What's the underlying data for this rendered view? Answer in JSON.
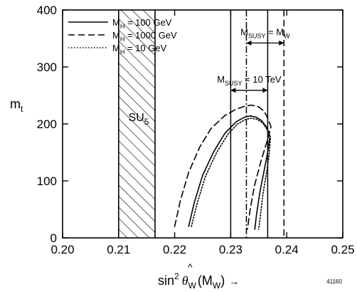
{
  "chart_data": {
    "type": "line",
    "title": "",
    "xlabel": "sin² θ̂W(MW) →",
    "xlabel_parts": {
      "main": "sin",
      "sup": "2",
      "theta": "θ",
      "hat": "^",
      "sub": "W",
      "arg": "(M",
      "arg_sub": "W",
      "close": ")",
      "arrow": "→"
    },
    "ylabel": "mt",
    "ylabel_parts": {
      "main": "m",
      "sub": "t"
    },
    "xlim": [
      0.2,
      0.25
    ],
    "ylim": [
      0,
      400
    ],
    "xticks": [
      0.2,
      0.21,
      0.22,
      0.23,
      0.24,
      0.25
    ],
    "xtick_labels": [
      "0.20",
      "0.21",
      "0.22",
      "0.23",
      "0.24",
      "0.25"
    ],
    "yticks": [
      0,
      100,
      200,
      300,
      400
    ],
    "ytick_labels": [
      "0",
      "100",
      "200",
      "300",
      "400"
    ],
    "grid": false,
    "legend_position": "top-left",
    "series": [
      {
        "name": "MH = 100 GeV",
        "legend_parts": {
          "m": "M",
          "sub": "H",
          "rest": " = 100 GeV"
        },
        "style": "solid",
        "lower_x": [
          0.2225,
          0.2235,
          0.225,
          0.227,
          0.229,
          0.231,
          0.2325,
          0.2335,
          0.2345,
          0.2355,
          0.2363,
          0.2368,
          0.237
        ],
        "lower_y": [
          20,
          62,
          110,
          152,
          184,
          204,
          212,
          214,
          212,
          206,
          196,
          185,
          178
        ],
        "upper_x": [
          0.2343,
          0.2346,
          0.2352,
          0.236,
          0.2366,
          0.237
        ],
        "upper_y": [
          15,
          40,
          80,
          120,
          150,
          178
        ]
      },
      {
        "name": "MH = 1000 GeV",
        "legend_parts": {
          "m": "M",
          "sub": "H",
          "rest": " = 1000 GeV"
        },
        "style": "dashed",
        "lower_x": [
          0.22,
          0.221,
          0.2225,
          0.2245,
          0.2265,
          0.229,
          0.231,
          0.2325,
          0.2337,
          0.235,
          0.236,
          0.2367,
          0.2372
        ],
        "lower_y": [
          20,
          65,
          115,
          160,
          192,
          215,
          226,
          231,
          233,
          230,
          222,
          208,
          195
        ],
        "upper_x": [
          0.233,
          0.2334,
          0.2342,
          0.2354,
          0.2365,
          0.2372
        ],
        "upper_y": [
          15,
          45,
          90,
          135,
          170,
          195
        ]
      },
      {
        "name": "MH = 10 GeV",
        "legend_parts": {
          "m": "M",
          "sub": "H",
          "rest": " = 10 GeV"
        },
        "style": "dotted",
        "lower_x": [
          0.223,
          0.224,
          0.2255,
          0.2275,
          0.2295,
          0.2312,
          0.2327,
          0.2337,
          0.2347,
          0.2357,
          0.2364,
          0.2369,
          0.2371
        ],
        "lower_y": [
          20,
          60,
          108,
          150,
          182,
          200,
          208,
          210,
          208,
          202,
          192,
          182,
          176
        ],
        "upper_x": [
          0.235,
          0.2353,
          0.2358,
          0.2365,
          0.2369,
          0.2371
        ],
        "upper_y": [
          15,
          40,
          80,
          120,
          150,
          176
        ]
      }
    ],
    "excluded_band": {
      "label": "SU5",
      "label_parts": {
        "main": "SU",
        "sub": "5"
      },
      "x_range": [
        0.21,
        0.2165
      ],
      "y_range": [
        0,
        400
      ],
      "style": "hatched"
    },
    "vertical_lines": [
      {
        "x": 0.23,
        "style": "solid"
      },
      {
        "x": 0.2328,
        "style": "dash-dot"
      },
      {
        "x": 0.2366,
        "style": "solid"
      },
      {
        "x": 0.2395,
        "style": "dashed"
      }
    ],
    "annotations": [
      {
        "id": "msusy-mw",
        "text": "MSUSY = MW",
        "parts": {
          "m": "M",
          "sub": "SUSY",
          "eq": " = ",
          "m2": "M",
          "sub2": "W"
        },
        "arrow_x": [
          0.2328,
          0.2395
        ],
        "y": 342
      },
      {
        "id": "msusy-10tev",
        "text": "MSUSY = 10 TeV",
        "parts": {
          "m": "M",
          "sub": "SUSY",
          "eq": " = 10 TeV"
        },
        "arrow_x": [
          0.23,
          0.2366
        ],
        "y": 259
      }
    ],
    "figure_number": "41160"
  }
}
